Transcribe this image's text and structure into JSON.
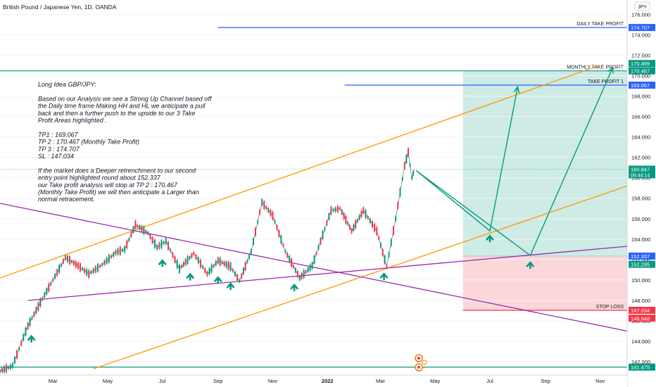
{
  "chart_data": {
    "type": "line",
    "title": "British Pound / Japanese Yen, 1D, OANDA",
    "currency": "JPY",
    "y_range": [
      140.7,
      177.4
    ],
    "y_ticks": [
      142,
      144,
      146,
      148,
      150,
      152,
      154,
      156,
      158,
      160,
      162,
      164,
      166,
      168,
      170,
      172,
      174,
      176
    ],
    "y_tick_labels": [
      "142.000",
      "144.000",
      "146.000",
      "148.000",
      "150.000",
      "152.000",
      "154.000",
      "156.000",
      "158.000",
      "160.000",
      "162.000",
      "164.000",
      "166.000",
      "168.000",
      "170.000",
      "172.000",
      "174.000",
      "176.000"
    ],
    "x_tick_labels": [
      "Mar",
      "May",
      "Jul",
      "Sep",
      "Nov",
      "2022",
      "Mar",
      "May",
      "Jul",
      "Sep",
      "Nov"
    ],
    "price_series": {
      "name": "GBPJPY",
      "points": [
        [
          "2021-01-01",
          141.1
        ],
        [
          "2021-01-15",
          141.6
        ],
        [
          "2021-02-01",
          145.5
        ],
        [
          "2021-02-15",
          147.8
        ],
        [
          "2021-03-01",
          150.0
        ],
        [
          "2021-03-15",
          152.2
        ],
        [
          "2021-03-29",
          151.4
        ],
        [
          "2021-04-10",
          150.6
        ],
        [
          "2021-04-25",
          151.5
        ],
        [
          "2021-05-10",
          152.7
        ],
        [
          "2021-05-20",
          153.0
        ],
        [
          "2021-06-01",
          155.4
        ],
        [
          "2021-06-15",
          154.6
        ],
        [
          "2021-06-25",
          153.2
        ],
        [
          "2021-07-05",
          153.8
        ],
        [
          "2021-07-20",
          151.1
        ],
        [
          "2021-08-05",
          152.6
        ],
        [
          "2021-08-20",
          150.6
        ],
        [
          "2021-09-01",
          151.9
        ],
        [
          "2021-09-15",
          151.3
        ],
        [
          "2021-09-25",
          149.9
        ],
        [
          "2021-10-08",
          152.8
        ],
        [
          "2021-10-20",
          157.6
        ],
        [
          "2021-11-01",
          156.3
        ],
        [
          "2021-11-15",
          152.8
        ],
        [
          "2021-12-01",
          150.2
        ],
        [
          "2021-12-15",
          151.4
        ],
        [
          "2022-01-05",
          156.8
        ],
        [
          "2022-01-15",
          157.0
        ],
        [
          "2022-01-28",
          154.8
        ],
        [
          "2022-02-10",
          156.8
        ],
        [
          "2022-02-25",
          154.8
        ],
        [
          "2022-03-08",
          151.3
        ],
        [
          "2022-03-18",
          156.0
        ],
        [
          "2022-03-28",
          161.2
        ],
        [
          "2022-04-01",
          162.5
        ],
        [
          "2022-04-05",
          160.0
        ],
        [
          "2022-04-08",
          160.847
        ]
      ]
    },
    "trend_lines": [
      {
        "name": "upper channel",
        "color": "#ff9800",
        "points": [
          [
            "2021-01-01",
            150.2
          ],
          [
            "2022-10-31",
            171.0
          ]
        ]
      },
      {
        "name": "lower channel",
        "color": "#ff9800",
        "points": [
          [
            "2021-04-15",
            141.3
          ],
          [
            "2022-12-01",
            159.2
          ]
        ]
      },
      {
        "name": "descending resistance",
        "color": "#9c27b0",
        "points": [
          [
            "2021-01-01",
            157.5
          ],
          [
            "2022-12-01",
            145.0
          ]
        ]
      },
      {
        "name": "rising support",
        "color": "#9c27b0",
        "points": [
          [
            "2021-02-01",
            148.0
          ],
          [
            "2022-12-01",
            153.3
          ]
        ]
      }
    ],
    "projection_path": {
      "color": "#089981",
      "points": [
        [
          "2022-04-10",
          160.7
        ],
        [
          "2022-07-01",
          154.8
        ],
        [
          "2022-08-01",
          168.9
        ]
      ]
    },
    "projection_path_2": {
      "color": "#089981",
      "points": [
        [
          "2022-04-10",
          160.7
        ],
        [
          "2022-08-15",
          152.4
        ],
        [
          "2022-11-15",
          170.8
        ]
      ]
    },
    "levels": [
      {
        "name": "DAILY TAKE PROFIT",
        "value": 174.707,
        "label": "174.707",
        "color": "#2962ff",
        "start": "2021-09-01"
      },
      {
        "name": "MONTHLY TAKE PROFIT",
        "value": 170.467,
        "label": "170.467",
        "color": "#089981",
        "start": "2021-01-01"
      },
      {
        "name": "TAKE PROFIT 1",
        "value": 169.067,
        "label": "169.067",
        "color": "#2962ff",
        "start": "2022-01-20"
      },
      {
        "name": "STOP LOSS",
        "value": 147.034,
        "label": "147.034",
        "color": "#f23645",
        "start": "2022-06-01"
      },
      {
        "name": "",
        "value": 141.475,
        "label": "141.475",
        "color": "#089981",
        "start": "2021-01-01"
      }
    ],
    "position": {
      "entry": 152.337,
      "target": 170.467,
      "stop": 147.034,
      "start": "2022-06-01",
      "end": "2022-12-01"
    },
    "price_labels": [
      {
        "value": 170.499,
        "text": "170.499",
        "color": "#089981"
      },
      {
        "value": 152.295,
        "text": "152.295",
        "color": "#089981"
      },
      {
        "value": 146.948,
        "text": "146.948",
        "color": "#f23645"
      },
      {
        "value": 152.337,
        "text": "152.337",
        "color": "#2962ff"
      }
    ],
    "current_price": {
      "value": 160.847,
      "text": "160.847",
      "countdown": "09:44:14",
      "color": "#089981"
    },
    "up_arrow_dates": [
      "2021-02-05",
      "2021-07-01",
      "2021-08-01",
      "2021-09-01",
      "2021-09-15",
      "2021-11-25",
      "2022-03-05",
      "2022-07-01",
      "2022-08-15"
    ],
    "annotation_lines": [
      "Long Idea GBP/JPY:",
      "",
      "Based on our Analysis we see a Strong Up Channel based off",
      "the Daily time frame Making HH and HL we anticipate a pull",
      "back and then a further push to the upside to our 3 Take",
      "Profit Areas highlighted .",
      "",
      "TP1   : 169.067",
      "TP 2  : 170.467 (Monthly Take Profit)",
      "TP 3  : 174.707",
      "SL     : 147.034",
      "",
      "If the market does a Deeper retrenchment to our second",
      "entry point highlighted round about 152.337",
      "our Take profit analysis will stop at TP 2 : 170.467",
      "(Monthly Take Profit) we will then anticipate a Larger than",
      "normal retracement."
    ]
  }
}
